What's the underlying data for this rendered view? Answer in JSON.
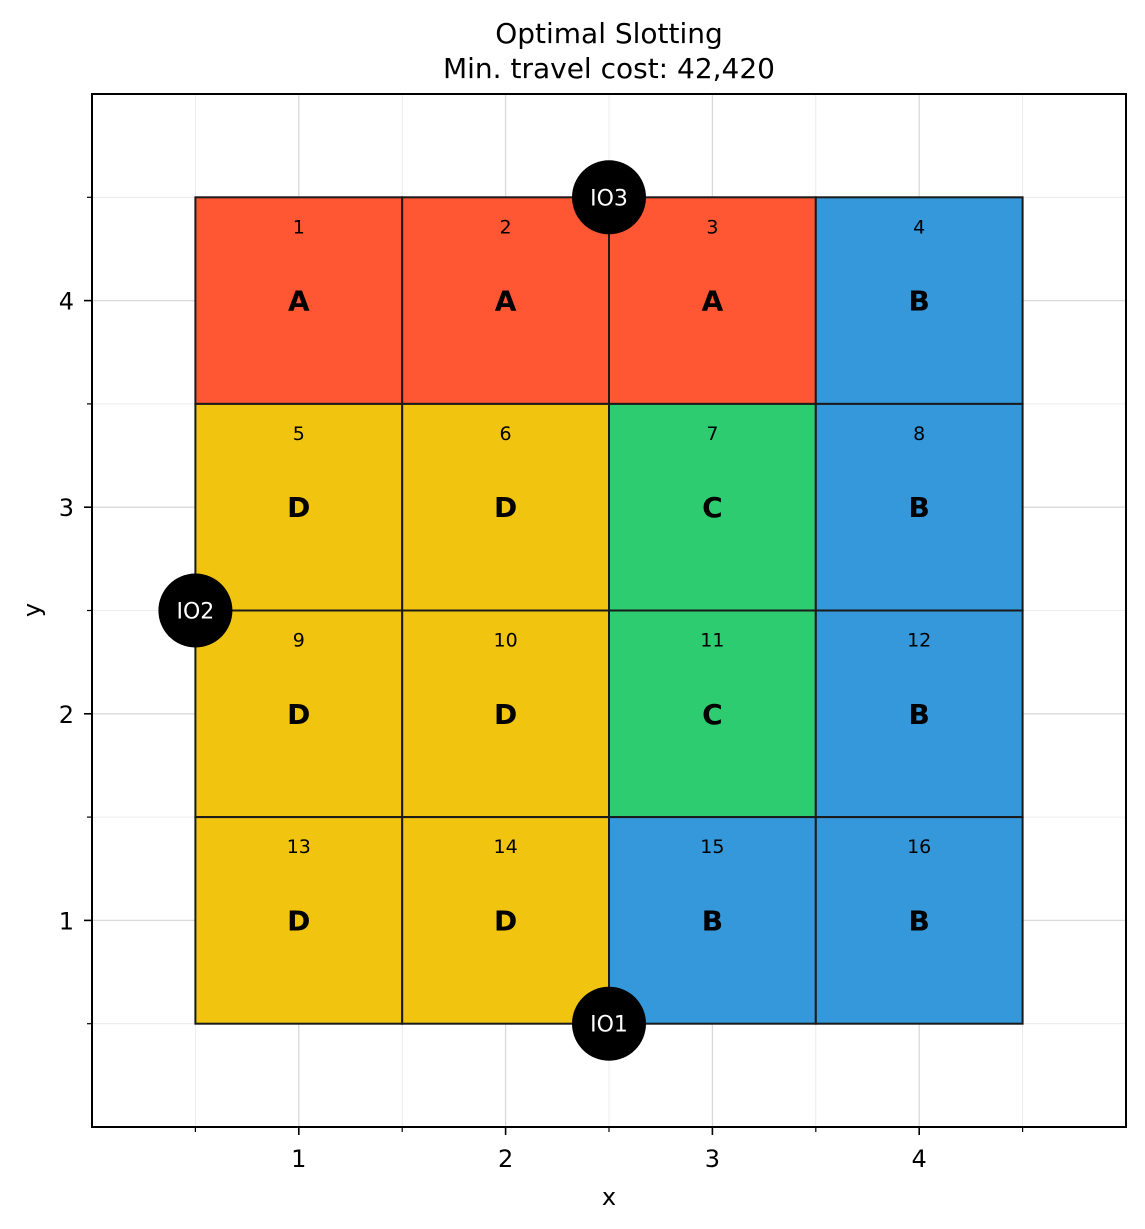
{
  "chart_data": {
    "type": "heatmap",
    "title_line1": "Optimal Slotting",
    "title_line2": "Min. travel cost: 42,420",
    "xlabel": "x",
    "ylabel": "y",
    "xlim": [
      0,
      5
    ],
    "ylim": [
      0,
      5
    ],
    "xticks": [
      "1",
      "2",
      "3",
      "4"
    ],
    "yticks": [
      "1",
      "2",
      "3",
      "4"
    ],
    "grid": true,
    "class_colors": {
      "A": "#ff5733",
      "B": "#3498db",
      "C": "#2ecc71",
      "D": "#f1c40f"
    },
    "cells": [
      {
        "id": "1",
        "x": 1,
        "y": 4,
        "cls": "A"
      },
      {
        "id": "2",
        "x": 2,
        "y": 4,
        "cls": "A"
      },
      {
        "id": "3",
        "x": 3,
        "y": 4,
        "cls": "A"
      },
      {
        "id": "4",
        "x": 4,
        "y": 4,
        "cls": "B"
      },
      {
        "id": "5",
        "x": 1,
        "y": 3,
        "cls": "D"
      },
      {
        "id": "6",
        "x": 2,
        "y": 3,
        "cls": "D"
      },
      {
        "id": "7",
        "x": 3,
        "y": 3,
        "cls": "C"
      },
      {
        "id": "8",
        "x": 4,
        "y": 3,
        "cls": "B"
      },
      {
        "id": "9",
        "x": 1,
        "y": 2,
        "cls": "D"
      },
      {
        "id": "10",
        "x": 2,
        "y": 2,
        "cls": "D"
      },
      {
        "id": "11",
        "x": 3,
        "y": 2,
        "cls": "C"
      },
      {
        "id": "12",
        "x": 4,
        "y": 2,
        "cls": "B"
      },
      {
        "id": "13",
        "x": 1,
        "y": 1,
        "cls": "D"
      },
      {
        "id": "14",
        "x": 2,
        "y": 1,
        "cls": "D"
      },
      {
        "id": "15",
        "x": 3,
        "y": 1,
        "cls": "B"
      },
      {
        "id": "16",
        "x": 4,
        "y": 1,
        "cls": "B"
      }
    ],
    "io_points": [
      {
        "label": "IO1",
        "x": 2.5,
        "y": 0.5
      },
      {
        "label": "IO2",
        "x": 0.5,
        "y": 2.5
      },
      {
        "label": "IO3",
        "x": 2.5,
        "y": 4.5
      }
    ]
  }
}
